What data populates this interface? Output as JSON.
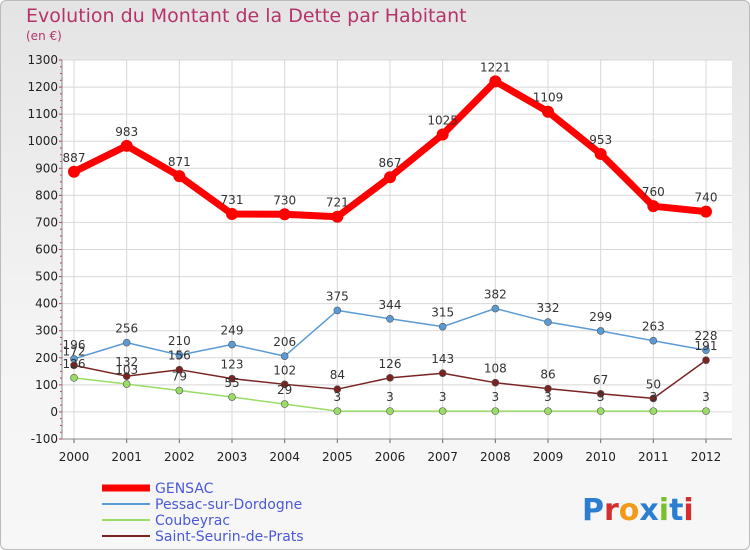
{
  "chart_data": {
    "type": "line",
    "title": "Evolution du Montant de la Dette par Habitant",
    "subtitle": "(en €)",
    "x": [
      "2000",
      "2001",
      "2002",
      "2003",
      "2004",
      "2005",
      "2006",
      "2007",
      "2008",
      "2009",
      "2010",
      "2011",
      "2012"
    ],
    "ylim": [
      -100,
      1300
    ],
    "yticks": [
      -100,
      0,
      100,
      200,
      300,
      400,
      500,
      600,
      700,
      800,
      900,
      1000,
      1100,
      1200,
      1300
    ],
    "grid": true,
    "legend_position": "bottom-left",
    "series": [
      {
        "name": "GENSAC",
        "color": "#ff0000",
        "values": [
          887,
          983,
          871,
          731,
          730,
          721,
          867,
          1025,
          1221,
          1109,
          953,
          760,
          740
        ]
      },
      {
        "name": "Pessac-sur-Dordogne",
        "color": "#5b9bd5",
        "values": [
          196,
          256,
          210,
          249,
          206,
          375,
          344,
          315,
          382,
          332,
          299,
          263,
          228
        ]
      },
      {
        "name": "Coubeyrac",
        "color": "#99dd66",
        "values": [
          126,
          103,
          79,
          55,
          29,
          3,
          3,
          3,
          3,
          3,
          3,
          3,
          3
        ]
      },
      {
        "name": "Saint-Seurin-de-Prats",
        "color": "#7a2323",
        "values": [
          172,
          132,
          156,
          123,
          102,
          84,
          126,
          143,
          108,
          86,
          67,
          50,
          191
        ]
      }
    ]
  },
  "logo": {
    "text": "Proxiti",
    "colors": [
      "#2c7fd0",
      "#d52e2e",
      "#f29a1b",
      "#2c7fd0",
      "#7bbf2b",
      "#2c7fd0",
      "#d52e2e"
    ]
  }
}
